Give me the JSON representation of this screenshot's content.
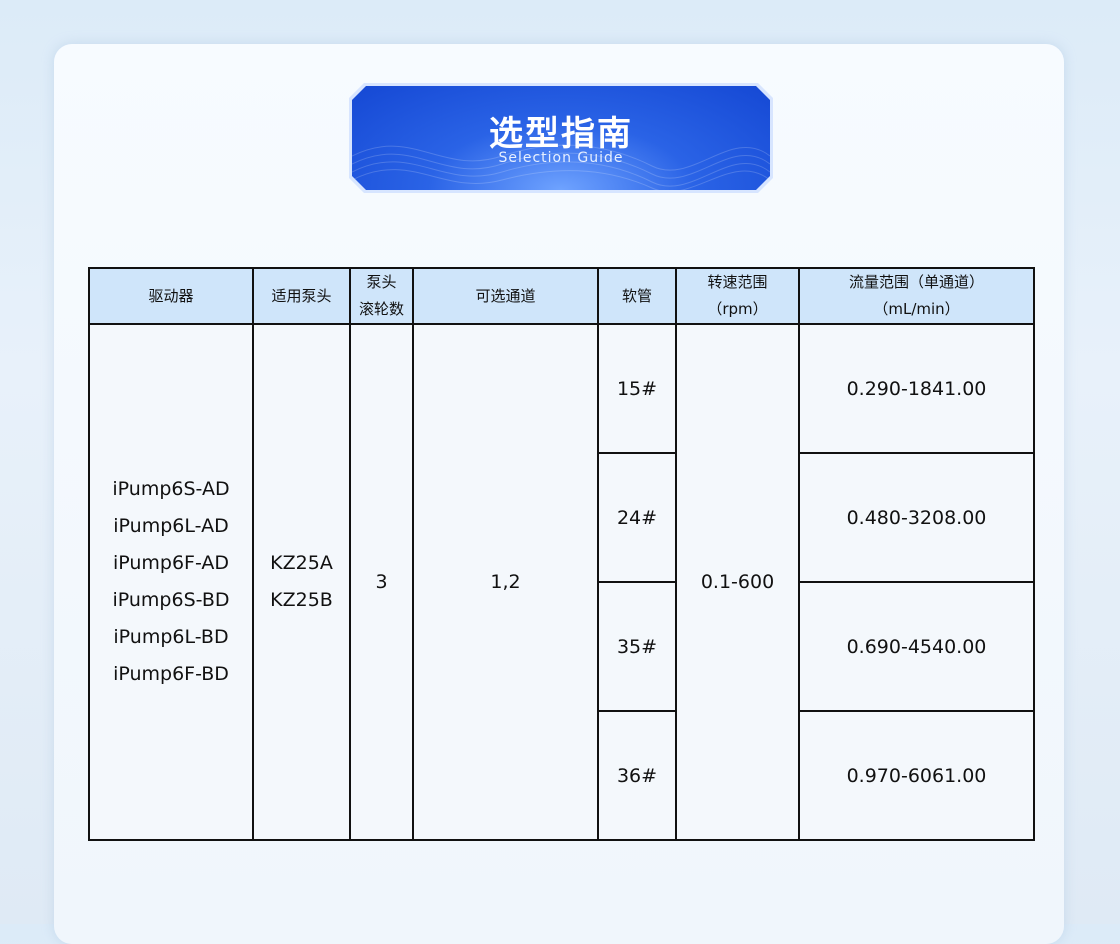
{
  "banner": {
    "title": "选型指南",
    "subtitle": "Selection  Guide"
  },
  "table": {
    "headers": {
      "driver": "驱动器",
      "pump_head": "适用泵头",
      "rollers_1": "泵头",
      "rollers_2": "滚轮数",
      "channels": "可选通道",
      "tubing": "软管",
      "speed_1": "转速范围",
      "speed_2": "（rpm）",
      "flow_1": "流量范围（单通道）",
      "flow_2": "（mL/min）"
    },
    "drivers": [
      "iPump6S-AD",
      "iPump6L-AD",
      "iPump6F-AD",
      "iPump6S-BD",
      "iPump6L-BD",
      "iPump6F-BD"
    ],
    "pump_heads": [
      "KZ25A",
      "KZ25B"
    ],
    "rollers": "3",
    "channels": "1,2",
    "speed": "0.1-600",
    "rows": [
      {
        "tubing": "15#",
        "flow": "0.290-1841.00"
      },
      {
        "tubing": "24#",
        "flow": "0.480-3208.00"
      },
      {
        "tubing": "35#",
        "flow": "0.690-4540.00"
      },
      {
        "tubing": "36#",
        "flow": "0.970-6061.00"
      }
    ]
  }
}
